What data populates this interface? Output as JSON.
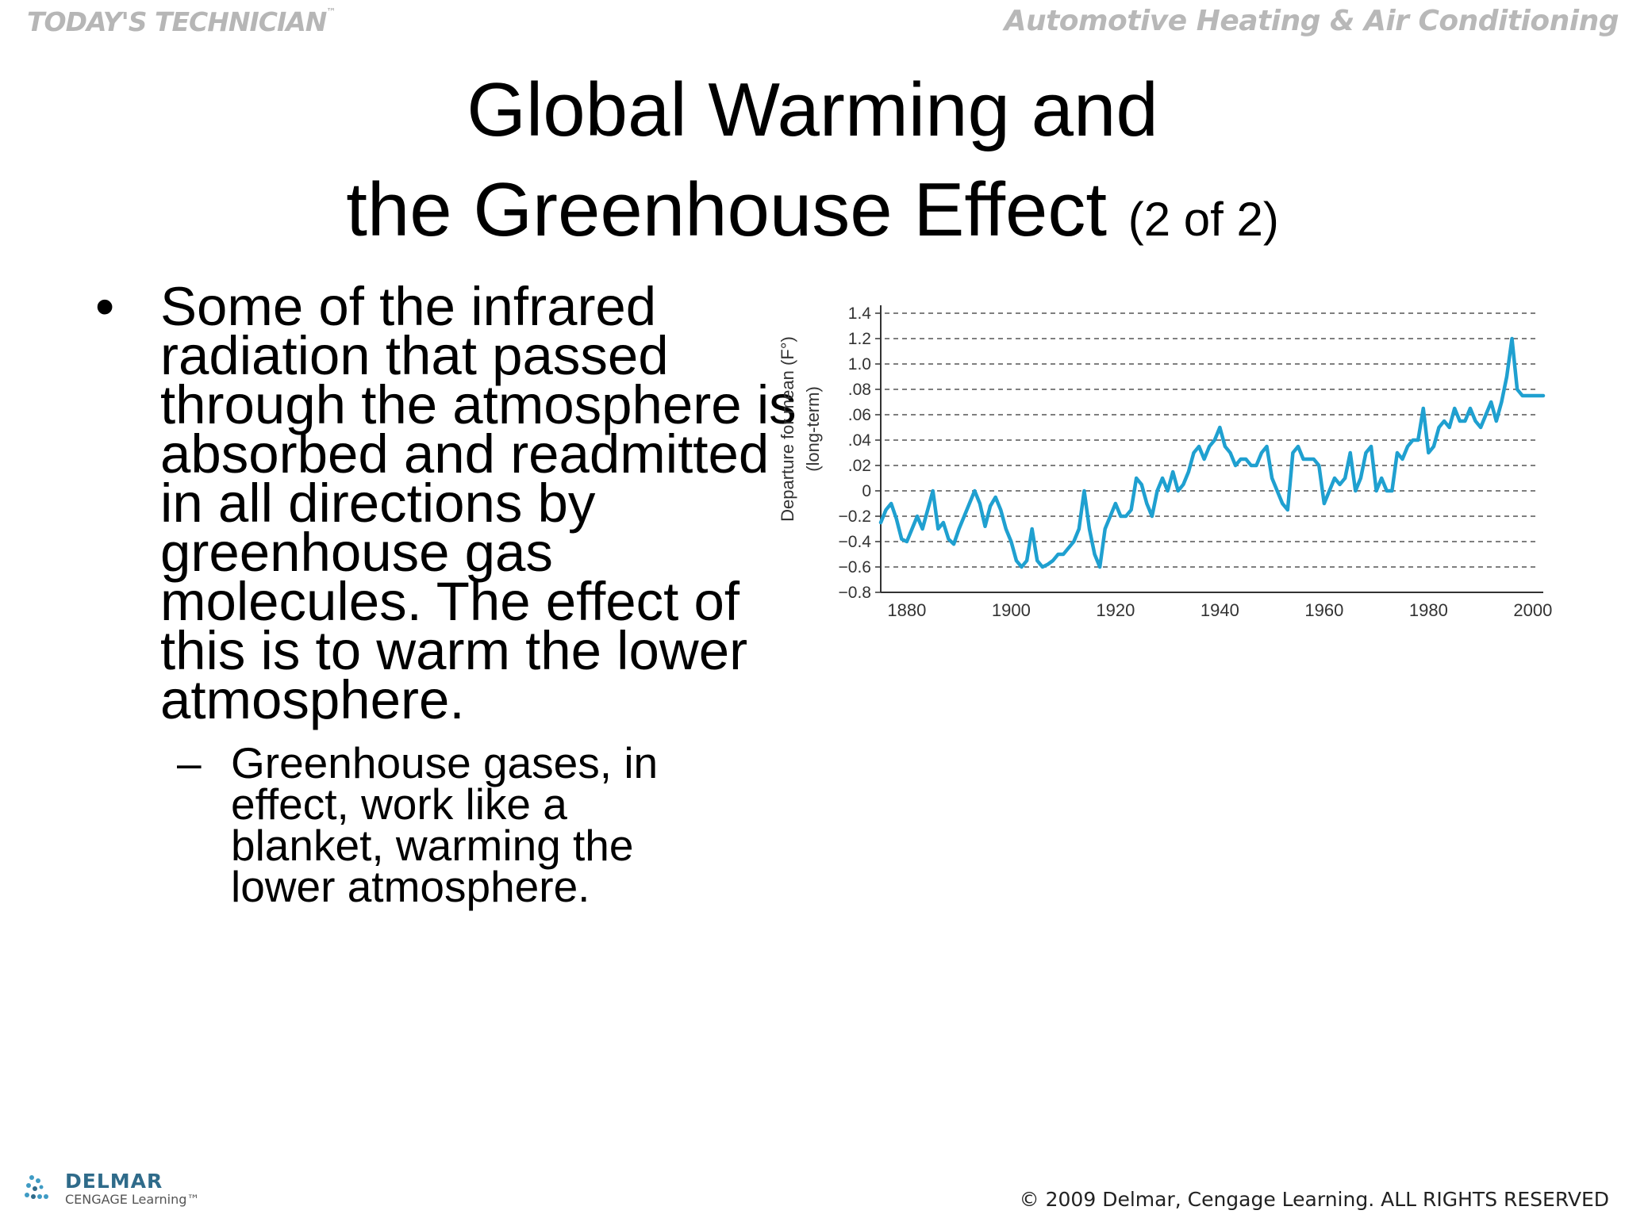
{
  "header": {
    "brand_left": "TODAY'S TECHNICIAN",
    "brand_left_tm": "™",
    "brand_right": "Automotive Heating & Air Conditioning"
  },
  "slide": {
    "title_line1": "Global Warming and",
    "title_line2": "the Greenhouse Effect",
    "title_suffix": "(2 of 2)",
    "bullet_marker": "•",
    "bullet_text": "Some of the infrared radiation that passed through the atmosphere is absorbed and readmitted in all directions by greenhouse gas molecules. The effect of this is to warm the lower atmosphere.",
    "subbullet_marker": "–",
    "subbullet_text": "Greenhouse gases, in effect, work like a blanket, warming the lower atmosphere."
  },
  "chart_data": {
    "type": "line",
    "title": "",
    "xlabel": "",
    "ylabel": "Departure for mean (F°)",
    "ylabel2": "(long-term)",
    "x_ticks": [
      "1880",
      "1900",
      "1920",
      "1940",
      "1960",
      "1980",
      "2000"
    ],
    "y_ticks": [
      "1.4",
      "1.2",
      "1.0",
      ".08",
      ".06",
      ".04",
      ".02",
      "0",
      "−0.2",
      "−0.4",
      "−0.6",
      "−0.8"
    ],
    "xlim": [
      1877,
      2004
    ],
    "grid": "horizontal-dashed",
    "line_color": "#1fa0d0",
    "series": [
      {
        "x": [
          1877,
          1878,
          1879,
          1880,
          1881,
          1882,
          1883,
          1884,
          1885,
          1886,
          1887,
          1888,
          1889,
          1890,
          1891,
          1892,
          1893,
          1894,
          1895,
          1896,
          1897,
          1898,
          1899,
          1900,
          1901,
          1902,
          1903,
          1904,
          1905,
          1906,
          1907,
          1908,
          1909,
          1910,
          1911,
          1912,
          1913,
          1914,
          1915,
          1916,
          1917,
          1918,
          1919,
          1920,
          1921,
          1922,
          1923,
          1924,
          1925,
          1926,
          1927,
          1928,
          1929,
          1930,
          1931,
          1932,
          1933,
          1934,
          1935,
          1936,
          1937,
          1938,
          1939,
          1940,
          1941,
          1942,
          1943,
          1944,
          1945,
          1946,
          1947,
          1948,
          1949,
          1950,
          1951,
          1952,
          1953,
          1954,
          1955,
          1956,
          1957,
          1958,
          1959,
          1960,
          1961,
          1962,
          1963,
          1964,
          1965,
          1966,
          1967,
          1968,
          1969,
          1970,
          1971,
          1972,
          1973,
          1974,
          1975,
          1976,
          1977,
          1978,
          1979,
          1980,
          1981,
          1982,
          1983,
          1984,
          1985,
          1986,
          1987,
          1988,
          1989,
          1990,
          1991,
          1992,
          1993,
          1994,
          1995,
          1996,
          1997,
          1998,
          1999,
          2000,
          2001,
          2002,
          2003,
          2004
        ],
        "values": [
          -0.25,
          -0.15,
          -0.1,
          -0.22,
          -0.38,
          -0.4,
          -0.3,
          -0.2,
          -0.3,
          -0.15,
          0.0,
          -0.3,
          -0.25,
          -0.38,
          -0.42,
          -0.3,
          -0.2,
          -0.1,
          0.0,
          -0.1,
          -0.28,
          -0.12,
          -0.05,
          -0.15,
          -0.3,
          -0.4,
          -0.55,
          -0.6,
          -0.55,
          -0.3,
          -0.55,
          -0.6,
          -0.58,
          -0.55,
          -0.5,
          -0.5,
          -0.45,
          -0.4,
          -0.3,
          0.0,
          -0.3,
          -0.5,
          -0.6,
          -0.3,
          -0.2,
          -0.1,
          -0.2,
          -0.2,
          -0.15,
          0.1,
          0.05,
          -0.1,
          -0.2,
          0.0,
          0.1,
          0.0,
          0.15,
          0.0,
          0.05,
          0.15,
          0.3,
          0.35,
          0.25,
          0.35,
          0.4,
          0.5,
          0.35,
          0.3,
          0.2,
          0.25,
          0.25,
          0.2,
          0.2,
          0.3,
          0.35,
          0.1,
          0.0,
          -0.1,
          -0.15,
          0.3,
          0.35,
          0.25,
          0.25,
          0.25,
          0.2,
          -0.1,
          0.0,
          0.1,
          0.05,
          0.1,
          0.3,
          0.0,
          0.1,
          0.3,
          0.35,
          0.0,
          0.1,
          0.0,
          0.0,
          0.3,
          0.25,
          0.35,
          0.4,
          0.4,
          0.65,
          0.3,
          0.35,
          0.5,
          0.55,
          0.5,
          0.65,
          0.55,
          0.55,
          0.65,
          0.55,
          0.5,
          0.6,
          0.7,
          0.55,
          0.7,
          0.9,
          1.2,
          0.8,
          0.75,
          0.75,
          0.75,
          0.75,
          0.75
        ]
      }
    ]
  },
  "footer": {
    "logo_name": "DELMAR",
    "logo_sub": "CENGAGE Learning",
    "logo_tm": "™",
    "copyright": "© 2009 Delmar, Cengage Learning. ALL RIGHTS RESERVED"
  }
}
